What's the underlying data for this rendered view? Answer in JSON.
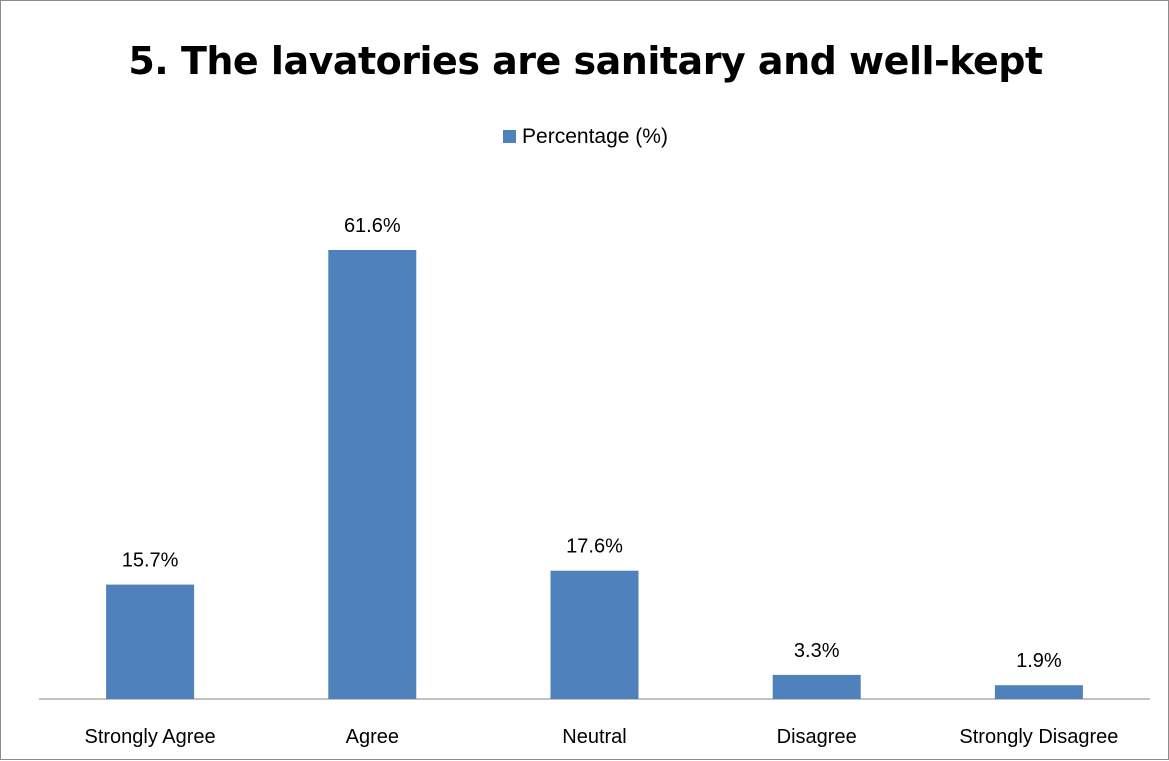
{
  "chart_data": {
    "type": "bar",
    "title": "5. The lavatories are sanitary and well-kept",
    "categories": [
      "Strongly Agree",
      "Agree",
      "Neutral",
      "Disagree",
      "Strongly Disagree"
    ],
    "series": [
      {
        "name": "Percentage (%)",
        "values": [
          15.7,
          61.6,
          17.6,
          3.3,
          1.9
        ],
        "data_labels": [
          "15.7%",
          "61.6%",
          "17.6%",
          "3.3%",
          "1.9%"
        ]
      }
    ],
    "xlabel": "",
    "ylabel": "",
    "ylim": [
      0,
      70
    ],
    "grid": false,
    "legend": "top-center",
    "colors": {
      "bar": "#4f81bd",
      "axis": "#868686"
    }
  }
}
